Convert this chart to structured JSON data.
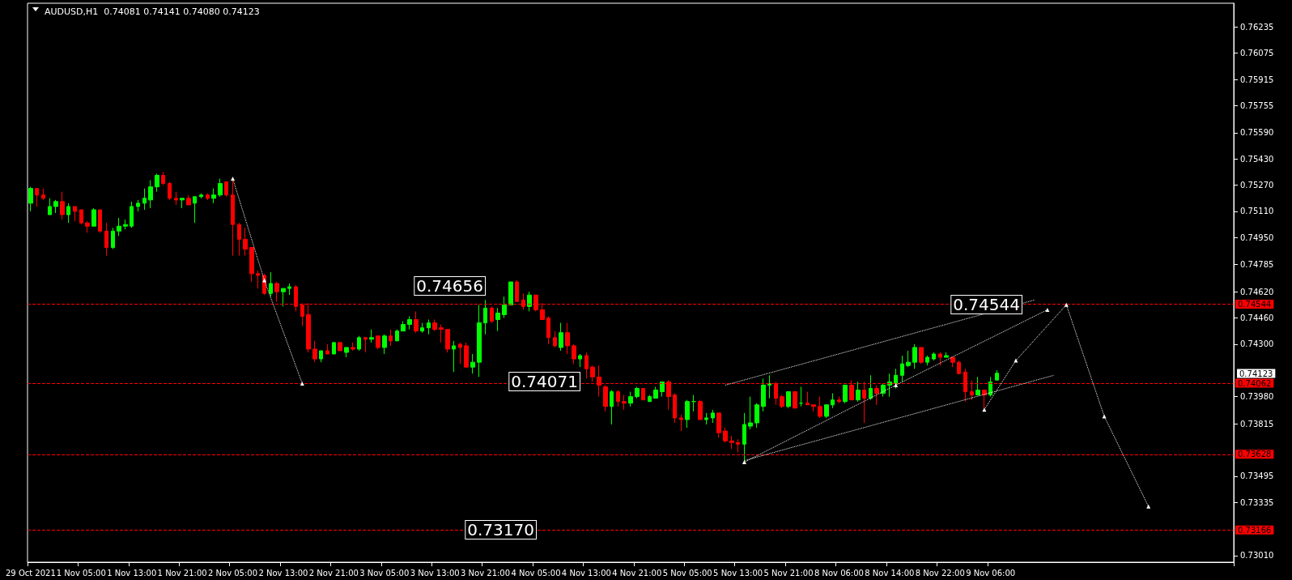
{
  "chart_data": {
    "type": "candlestick",
    "title": "AUDUSD,H1  0.74081 0.74141 0.74080 0.74123",
    "categories": [
      "29 Oct 2021",
      null,
      null,
      null,
      null,
      null,
      null,
      null,
      "1 Nov 05:00",
      null,
      null,
      null,
      null,
      null,
      null,
      null,
      "1 Nov 13:00",
      null,
      null,
      null,
      null,
      null,
      null,
      null,
      "1 Nov 21:00",
      null,
      null,
      null,
      null,
      null,
      null,
      null,
      "2 Nov 05:00",
      null,
      null,
      null,
      null,
      null,
      null,
      null,
      "2 Nov 13:00",
      null,
      null,
      null,
      null,
      null,
      null,
      null,
      "2 Nov 21:00",
      null,
      null,
      null,
      null,
      null,
      null,
      null,
      "3 Nov 05:00",
      null,
      null,
      null,
      null,
      null,
      null,
      null,
      "3 Nov 13:00",
      null,
      null,
      null,
      null,
      null,
      null,
      null,
      "3 Nov 21:00",
      null,
      null,
      null,
      null,
      null,
      null,
      null,
      "4 Nov 05:00",
      null,
      null,
      null,
      null,
      null,
      null,
      null,
      "4 Nov 13:00",
      null,
      null,
      null,
      null,
      null,
      null,
      null,
      "4 Nov 21:00",
      null,
      null,
      null,
      null,
      null,
      null,
      null,
      "5 Nov 05:00",
      null,
      null,
      null,
      null,
      null,
      null,
      null,
      "5 Nov 13:00",
      null,
      null,
      null,
      null,
      null,
      null,
      null,
      "5 Nov 21:00",
      null,
      null,
      null,
      null,
      null,
      null,
      null,
      "8 Nov 06:00",
      null,
      null,
      null,
      null,
      null,
      null,
      null,
      "8 Nov 14:00",
      null,
      null,
      null,
      null,
      null,
      null,
      null,
      "8 Nov 22:00",
      null,
      null,
      null,
      null,
      null,
      null,
      null,
      "9 Nov 06:00",
      null,
      null,
      null,
      null,
      null,
      null,
      null,
      null,
      null,
      null,
      null,
      null,
      null,
      null,
      null,
      null,
      null,
      null,
      null,
      null,
      null,
      null,
      null,
      null,
      null,
      null,
      null,
      null,
      null,
      null,
      null,
      null,
      null,
      null,
      null,
      null,
      null,
      null
    ],
    "colors": [
      "#00ff00",
      "#ff0000",
      "#ff0000",
      "#00ff00",
      "#00ff00",
      "#ff0000",
      "#00ff00",
      "#ff0000",
      "#ff0000",
      "#ff0000",
      "#00ff00",
      "#ff0000",
      "#ff0000",
      "#00ff00",
      "#00ff00",
      "#00ff00",
      "#00ff00",
      "#00ff00",
      "#00ff00",
      "#00ff00",
      "#00ff00",
      "#ff0000",
      "#ff0000",
      "#ff0000",
      "#00ff00",
      "#ff0000",
      "#00ff00",
      "#00ff00",
      "#ff0000",
      "#00ff00",
      "#00ff00",
      "#ff0000",
      "#ff0000",
      "#ff0000",
      "#ff0000",
      "#ff0000",
      "#ff0000",
      "#ff0000",
      "#00ff00",
      "#ff0000",
      "#00ff00",
      "#00ff00",
      "#ff0000",
      "#ff0000",
      "#ff0000",
      "#ff0000",
      "#00ff00",
      "#ff0000",
      "#00ff00",
      "#ff0000",
      "#00ff00",
      "#ff0000",
      "#00ff00",
      "#ff0000",
      "#00ff00",
      "#ff0000",
      "#00ff00",
      "#ff0000",
      "#00ff00",
      "#00ff00",
      "#00ff00",
      "#ff0000",
      "#00ff00",
      "#00ff00",
      "#ff0000",
      "#ff0000",
      "#ff0000",
      "#00ff00",
      "#ff0000",
      "#ff0000",
      "#00ff00",
      "#00ff00",
      "#00ff00",
      "#ff0000",
      "#00ff00",
      "#00ff00",
      "#00ff00",
      "#ff0000",
      "#ff0000",
      "#00ff00",
      "#ff0000",
      "#ff0000",
      "#ff0000",
      "#ff0000",
      "#00ff00",
      "#ff0000",
      "#ff0000",
      "#00ff00",
      "#ff0000",
      "#ff0000",
      "#ff0000",
      "#ff0000",
      "#00ff00",
      "#ff0000",
      "#ff0000",
      "#00ff00",
      "#00ff00",
      "#ff0000",
      "#00ff00",
      "#00ff00",
      "#00ff00",
      "#ff0000",
      "#ff0000",
      "#ff0000",
      "#00ff00",
      "#00ff00",
      "#ff0000",
      "#00ff00",
      "#00ff00",
      "#ff0000",
      "#ff0000",
      "#ff0000",
      "#ff0000",
      "#00ff00",
      "#00ff00",
      "#00ff00",
      "#00ff00",
      "#00ff00",
      "#ff0000",
      "#ff0000",
      "#00ff00",
      "#ff0000",
      "#00ff00",
      "#ff0000",
      "#ff0000",
      "#ff0000",
      "#00ff00",
      "#00ff00",
      "#ff0000",
      "#00ff00",
      "#ff0000",
      "#00ff00",
      "#ff0000",
      "#00ff00",
      "#ff0000",
      "#00ff00",
      "#00ff00",
      "#00ff00",
      "#00ff00",
      "#00ff00",
      "#00ff00",
      "#ff0000",
      "#00ff00",
      "#00ff00",
      "#ff0000",
      "#00ff00",
      "#ff0000",
      "#ff0000",
      "#ff0000",
      "#ff0000",
      "#00ff00",
      "#ff0000",
      "#00ff00",
      "#00ff00",
      null,
      null,
      null,
      null,
      null,
      null,
      null,
      null,
      null,
      null,
      null,
      null,
      null,
      null,
      null,
      null,
      null,
      null,
      null,
      null,
      null,
      null,
      null,
      null,
      null,
      null,
      null,
      null,
      null,
      null,
      null,
      null,
      null,
      null,
      null,
      null,
      null
    ],
    "ohlc": [
      [
        0.7516,
        0.7526,
        0.7511,
        0.7525
      ],
      [
        0.7525,
        0.7525,
        0.7514,
        0.7521
      ],
      [
        0.7521,
        0.7525,
        0.7518,
        0.7519
      ],
      [
        0.7509,
        0.7519,
        0.7509,
        0.7514
      ],
      [
        0.7514,
        0.7518,
        0.751,
        0.7517
      ],
      [
        0.7517,
        0.7523,
        0.7506,
        0.7509
      ],
      [
        0.7509,
        0.7516,
        0.7504,
        0.7514
      ],
      [
        0.7514,
        0.7514,
        0.7505,
        0.7511
      ],
      [
        0.7512,
        0.7512,
        0.7503,
        0.7504
      ],
      [
        0.7504,
        0.7505,
        0.7498,
        0.7502
      ],
      [
        0.7502,
        0.7513,
        0.7502,
        0.7512
      ],
      [
        0.7512,
        0.7512,
        0.7498,
        0.7499
      ],
      [
        0.7499,
        0.7504,
        0.7484,
        0.7489
      ],
      [
        0.7489,
        0.7501,
        0.7488,
        0.7499
      ],
      [
        0.7499,
        0.7507,
        0.7496,
        0.7502
      ],
      [
        0.7502,
        0.7506,
        0.75,
        0.7503
      ],
      [
        0.7502,
        0.7517,
        0.7501,
        0.7514
      ],
      [
        0.7514,
        0.7518,
        0.7511,
        0.7516
      ],
      [
        0.7516,
        0.7525,
        0.7512,
        0.7519
      ],
      [
        0.7518,
        0.753,
        0.7513,
        0.7526
      ],
      [
        0.7526,
        0.7534,
        0.7523,
        0.7533
      ],
      [
        0.7533,
        0.7535,
        0.7527,
        0.7528
      ],
      [
        0.7528,
        0.7529,
        0.7518,
        0.7519
      ],
      [
        0.7519,
        0.7523,
        0.7515,
        0.7518
      ],
      [
        0.7518,
        0.7519,
        0.7513,
        0.7519
      ],
      [
        0.7519,
        0.7521,
        0.7515,
        0.7515
      ],
      [
        0.7516,
        0.752,
        0.7504,
        0.752
      ],
      [
        0.752,
        0.7522,
        0.7519,
        0.7521
      ],
      [
        0.7521,
        0.7522,
        0.7518,
        0.7519
      ],
      [
        0.7519,
        0.7525,
        0.7516,
        0.7521
      ],
      [
        0.7521,
        0.7531,
        0.752,
        0.7528
      ],
      [
        0.7529,
        0.7529,
        0.752,
        0.7521
      ],
      [
        0.7521,
        0.753,
        0.7484,
        0.7503
      ],
      [
        0.7503,
        0.7504,
        0.7484,
        0.7494
      ],
      [
        0.7494,
        0.7501,
        0.7484,
        0.7488
      ],
      [
        0.7489,
        0.7489,
        0.7468,
        0.7473
      ],
      [
        0.7473,
        0.7475,
        0.7464,
        0.7472
      ],
      [
        0.7472,
        0.7473,
        0.746,
        0.7461
      ],
      [
        0.7461,
        0.7474,
        0.7459,
        0.7467
      ],
      [
        0.7467,
        0.7468,
        0.7456,
        0.7462
      ],
      [
        0.7462,
        0.7464,
        0.7453,
        0.7464
      ],
      [
        0.7464,
        0.7467,
        0.746,
        0.7465
      ],
      [
        0.7465,
        0.7466,
        0.745,
        0.7453
      ],
      [
        0.7454,
        0.7455,
        0.7441,
        0.7447
      ],
      [
        0.7448,
        0.7455,
        0.7425,
        0.7427
      ],
      [
        0.7427,
        0.7432,
        0.7419,
        0.7421
      ],
      [
        0.7421,
        0.7426,
        0.7419,
        0.7426
      ],
      [
        0.7426,
        0.743,
        0.7424,
        0.7424
      ],
      [
        0.7424,
        0.7431,
        0.7424,
        0.7431
      ],
      [
        0.7431,
        0.7431,
        0.7426,
        0.7426
      ],
      [
        0.7425,
        0.7428,
        0.7422,
        0.7428
      ],
      [
        0.7428,
        0.7431,
        0.7426,
        0.7427
      ],
      [
        0.7427,
        0.7435,
        0.7426,
        0.7434
      ],
      [
        0.7434,
        0.7434,
        0.7425,
        0.7433
      ],
      [
        0.7433,
        0.7439,
        0.7431,
        0.7434
      ],
      [
        0.7435,
        0.7435,
        0.7427,
        0.7428
      ],
      [
        0.7428,
        0.7436,
        0.7424,
        0.7435
      ],
      [
        0.7435,
        0.7439,
        0.7429,
        0.7432
      ],
      [
        0.7432,
        0.7439,
        0.7432,
        0.7438
      ],
      [
        0.7438,
        0.7444,
        0.7438,
        0.7442
      ],
      [
        0.7442,
        0.7447,
        0.7439,
        0.7445
      ],
      [
        0.7445,
        0.745,
        0.7437,
        0.7438
      ],
      [
        0.7438,
        0.7443,
        0.7437,
        0.744
      ],
      [
        0.744,
        0.7445,
        0.7436,
        0.7443
      ],
      [
        0.7443,
        0.7445,
        0.7438,
        0.7439
      ],
      [
        0.744,
        0.7442,
        0.7431,
        0.7439
      ],
      [
        0.7439,
        0.7439,
        0.7425,
        0.7427
      ],
      [
        0.7427,
        0.7432,
        0.7413,
        0.7429
      ],
      [
        0.743,
        0.7431,
        0.7418,
        0.7428
      ],
      [
        0.7429,
        0.7431,
        0.7416,
        0.7416
      ],
      [
        0.7416,
        0.7424,
        0.7412,
        0.7419
      ],
      [
        0.7419,
        0.7454,
        0.741,
        0.7443
      ],
      [
        0.7443,
        0.7457,
        0.7436,
        0.7452
      ],
      [
        0.7452,
        0.7453,
        0.7443,
        0.7444
      ],
      [
        0.7445,
        0.7452,
        0.7438,
        0.7449
      ],
      [
        0.7448,
        0.7459,
        0.7446,
        0.7454
      ],
      [
        0.7454,
        0.7468,
        0.7454,
        0.7468
      ],
      [
        0.7468,
        0.7469,
        0.7456,
        0.7456
      ],
      [
        0.7457,
        0.7461,
        0.7451,
        0.7453
      ],
      [
        0.7453,
        0.7462,
        0.745,
        0.746
      ],
      [
        0.746,
        0.746,
        0.745,
        0.7451
      ],
      [
        0.7451,
        0.7455,
        0.7445,
        0.7445
      ],
      [
        0.7446,
        0.7447,
        0.743,
        0.7434
      ],
      [
        0.7434,
        0.7438,
        0.7428,
        0.7429
      ],
      [
        0.7428,
        0.7443,
        0.7426,
        0.7437
      ],
      [
        0.7437,
        0.7443,
        0.7424,
        0.7429
      ],
      [
        0.7429,
        0.743,
        0.7418,
        0.7421
      ],
      [
        0.7421,
        0.7424,
        0.7416,
        0.7423
      ],
      [
        0.7423,
        0.7425,
        0.7409,
        0.7415
      ],
      [
        0.7416,
        0.7417,
        0.7407,
        0.741
      ],
      [
        0.741,
        0.7417,
        0.7398,
        0.7405
      ],
      [
        0.7404,
        0.7405,
        0.7389,
        0.7392
      ],
      [
        0.7392,
        0.7402,
        0.7381,
        0.7401
      ],
      [
        0.7401,
        0.7402,
        0.7392,
        0.7395
      ],
      [
        0.7395,
        0.7399,
        0.739,
        0.7394
      ],
      [
        0.7394,
        0.7401,
        0.7392,
        0.7398
      ],
      [
        0.7398,
        0.7404,
        0.7397,
        0.7403
      ],
      [
        0.7403,
        0.7403,
        0.7396,
        0.7396
      ],
      [
        0.7395,
        0.7399,
        0.7395,
        0.7398
      ],
      [
        0.7397,
        0.7404,
        0.7397,
        0.7402
      ],
      [
        0.7401,
        0.7407,
        0.7398,
        0.7407
      ],
      [
        0.7407,
        0.7408,
        0.739,
        0.7398
      ],
      [
        0.7399,
        0.74,
        0.7382,
        0.7385
      ],
      [
        0.7385,
        0.7387,
        0.7377,
        0.7384
      ],
      [
        0.7384,
        0.7396,
        0.7379,
        0.7395
      ],
      [
        0.7395,
        0.7399,
        0.7389,
        0.7395
      ],
      [
        0.7395,
        0.7396,
        0.7384,
        0.7384
      ],
      [
        0.7384,
        0.7388,
        0.7381,
        0.7385
      ],
      [
        0.7385,
        0.739,
        0.7382,
        0.7388
      ],
      [
        0.7388,
        0.7388,
        0.7373,
        0.7376
      ],
      [
        0.7377,
        0.7379,
        0.737,
        0.7371
      ],
      [
        0.7371,
        0.7374,
        0.7366,
        0.737
      ],
      [
        0.737,
        0.7372,
        0.7364,
        0.7369
      ],
      [
        0.7369,
        0.7388,
        0.7358,
        0.7381
      ],
      [
        0.738,
        0.7398,
        0.7378,
        0.7382
      ],
      [
        0.7382,
        0.7394,
        0.7379,
        0.7393
      ],
      [
        0.7392,
        0.7409,
        0.7389,
        0.7405
      ],
      [
        0.7405,
        0.7411,
        0.7397,
        0.7406
      ],
      [
        0.7406,
        0.7407,
        0.7393,
        0.7397
      ],
      [
        0.7398,
        0.7399,
        0.7391,
        0.7392
      ],
      [
        0.7392,
        0.7401,
        0.7391,
        0.7401
      ],
      [
        0.7401,
        0.7401,
        0.7391,
        0.7391
      ],
      [
        0.7394,
        0.7404,
        0.7392,
        0.7394
      ],
      [
        0.7394,
        0.7401,
        0.7393,
        0.7393
      ],
      [
        0.7393,
        0.7393,
        0.7389,
        0.7392
      ],
      [
        0.7392,
        0.7398,
        0.7385,
        0.7386
      ],
      [
        0.7386,
        0.7393,
        0.7385,
        0.7393
      ],
      [
        0.7393,
        0.74,
        0.7391,
        0.7396
      ],
      [
        0.7396,
        0.7398,
        0.7394,
        0.7395
      ],
      [
        0.7395,
        0.7405,
        0.7394,
        0.7405
      ],
      [
        0.7405,
        0.7408,
        0.7396,
        0.7396
      ],
      [
        0.7396,
        0.7407,
        0.7395,
        0.7402
      ],
      [
        0.7402,
        0.7407,
        0.7382,
        0.7397
      ],
      [
        0.7397,
        0.7411,
        0.7396,
        0.7403
      ],
      [
        0.7403,
        0.7405,
        0.7393,
        0.74
      ],
      [
        0.74,
        0.7406,
        0.7398,
        0.7405
      ],
      [
        0.7405,
        0.7412,
        0.7398,
        0.7407
      ],
      [
        0.7406,
        0.7415,
        0.7403,
        0.7411
      ],
      [
        0.7411,
        0.7423,
        0.7407,
        0.7418
      ],
      [
        0.7417,
        0.7426,
        0.7416,
        0.7419
      ],
      [
        0.7419,
        0.743,
        0.7415,
        0.7428
      ],
      [
        0.7428,
        0.7428,
        0.7418,
        0.7419
      ],
      [
        0.7419,
        0.7423,
        0.7417,
        0.7422
      ],
      [
        0.7421,
        0.7425,
        0.742,
        0.7424
      ],
      [
        0.7424,
        0.7425,
        0.7417,
        0.7422
      ],
      [
        0.7422,
        0.7425,
        0.7422,
        0.7423
      ],
      [
        0.7422,
        0.7422,
        0.7416,
        0.7419
      ],
      [
        0.7419,
        0.742,
        0.7412,
        0.7412
      ],
      [
        0.7413,
        0.7415,
        0.7395,
        0.7401
      ],
      [
        0.7401,
        0.7408,
        0.7396,
        0.7399
      ],
      [
        0.7399,
        0.741,
        0.7399,
        0.7402
      ],
      [
        0.7402,
        0.7402,
        0.739,
        0.7399
      ],
      [
        0.7399,
        0.741,
        0.7398,
        0.7407
      ],
      [
        0.74081,
        0.74141,
        0.7408,
        0.74123
      ],
      null,
      null,
      null,
      null,
      null,
      null,
      null,
      null,
      null,
      null,
      null,
      null,
      null,
      null,
      null,
      null,
      null,
      null,
      null,
      null,
      null,
      null,
      null,
      null,
      null,
      null,
      null,
      null,
      null,
      null,
      null,
      null,
      null,
      null,
      null,
      null,
      null
    ],
    "series": [
      {
        "type": "line",
        "color": "#ffffff",
        "line_style": "dotted",
        "marker": "triangle",
        "values": [
          null,
          null,
          null,
          null,
          null,
          null,
          null,
          null,
          null,
          null,
          null,
          null,
          null,
          null,
          null,
          null,
          null,
          null,
          null,
          null,
          null,
          null,
          null,
          null,
          null,
          null,
          null,
          null,
          null,
          null,
          null,
          null,
          0.7531,
          null,
          null,
          null,
          null,
          0.7469,
          null,
          null,
          null,
          null,
          null,
          0.7406,
          null,
          null,
          null,
          null,
          null,
          null,
          null,
          null,
          null,
          null,
          null,
          null,
          null,
          null,
          null,
          null,
          null,
          null,
          null,
          null,
          null,
          null,
          null,
          null,
          null,
          null,
          null,
          null,
          null,
          null,
          null,
          null,
          null,
          null,
          null,
          null,
          null,
          null,
          null,
          null,
          null,
          null,
          null,
          null,
          null,
          null,
          null,
          null,
          null,
          null,
          null,
          null,
          null,
          null,
          null,
          null,
          null,
          null,
          null,
          null,
          null,
          null,
          null,
          null,
          null,
          null,
          null,
          null,
          null,
          null,
          null,
          null,
          null,
          null,
          null,
          null,
          null,
          null,
          null,
          null,
          null,
          null,
          null,
          null,
          null,
          null,
          null,
          null,
          null,
          null,
          null,
          null,
          null,
          null,
          null,
          null,
          null,
          null,
          null,
          null,
          null,
          null,
          null,
          null,
          null,
          null,
          null,
          null,
          null,
          null,
          null,
          null,
          null,
          null,
          null,
          null,
          null,
          null,
          null,
          null,
          null,
          null,
          null,
          null,
          null,
          null,
          null,
          null,
          null,
          null,
          null,
          null,
          null,
          null,
          null,
          null,
          null,
          null,
          null,
          null,
          null,
          null,
          null,
          null,
          null,
          null,
          null
        ]
      },
      {
        "type": "line",
        "color": "#ffffff",
        "line_style": "dotted",
        "marker": "none",
        "values": [
          null,
          null,
          null,
          null,
          null,
          null,
          null,
          null,
          null,
          null,
          null,
          null,
          null,
          null,
          null,
          null,
          null,
          null,
          null,
          null,
          null,
          null,
          null,
          null,
          null,
          null,
          null,
          null,
          null,
          null,
          null,
          null,
          null,
          null,
          null,
          null,
          null,
          null,
          null,
          null,
          null,
          null,
          null,
          null,
          null,
          null,
          null,
          null,
          null,
          null,
          null,
          null,
          null,
          null,
          null,
          null,
          null,
          null,
          null,
          null,
          null,
          null,
          null,
          null,
          null,
          null,
          null,
          null,
          null,
          null,
          null,
          null,
          null,
          null,
          null,
          null,
          null,
          null,
          null,
          null,
          null,
          null,
          null,
          null,
          null,
          null,
          null,
          null,
          null,
          null,
          null,
          null,
          null,
          null,
          null,
          null,
          null,
          null,
          null,
          null,
          null,
          null,
          null,
          null,
          null,
          null,
          null,
          null,
          null,
          null,
          0.7405,
          null,
          null,
          null,
          null,
          null,
          null,
          null,
          null,
          null,
          null,
          null,
          null,
          null,
          null,
          null,
          null,
          null,
          null,
          null,
          null,
          null,
          null,
          null,
          null,
          null,
          null,
          null,
          null,
          null,
          null,
          null,
          null,
          null,
          null,
          null,
          null,
          null,
          null,
          null,
          null,
          null,
          null,
          null,
          null,
          null,
          null,
          null,
          null,
          0.7457,
          null,
          null,
          null,
          null,
          null,
          null,
          null,
          null,
          null,
          null,
          null,
          null,
          null,
          null,
          null,
          null,
          null,
          null,
          null,
          null,
          null,
          null,
          null,
          null,
          null,
          null,
          null,
          null,
          null,
          null,
          null
        ]
      },
      {
        "type": "line",
        "color": "#ffffff",
        "line_style": "dotted",
        "marker": "none",
        "values": [
          null,
          null,
          null,
          null,
          null,
          null,
          null,
          null,
          null,
          null,
          null,
          null,
          null,
          null,
          null,
          null,
          null,
          null,
          null,
          null,
          null,
          null,
          null,
          null,
          null,
          null,
          null,
          null,
          null,
          null,
          null,
          null,
          null,
          null,
          null,
          null,
          null,
          null,
          null,
          null,
          null,
          null,
          null,
          null,
          null,
          null,
          null,
          null,
          null,
          null,
          null,
          null,
          null,
          null,
          null,
          null,
          null,
          null,
          null,
          null,
          null,
          null,
          null,
          null,
          null,
          null,
          null,
          null,
          null,
          null,
          null,
          null,
          null,
          null,
          null,
          null,
          null,
          null,
          null,
          null,
          null,
          null,
          null,
          null,
          null,
          null,
          null,
          null,
          null,
          null,
          null,
          null,
          null,
          null,
          null,
          null,
          null,
          null,
          null,
          null,
          null,
          null,
          null,
          null,
          null,
          null,
          null,
          null,
          null,
          null,
          null,
          null,
          null,
          0.7359,
          null,
          null,
          null,
          null,
          null,
          null,
          null,
          null,
          null,
          null,
          null,
          null,
          null,
          null,
          null,
          null,
          null,
          null,
          null,
          null,
          null,
          null,
          null,
          null,
          null,
          null,
          null,
          null,
          null,
          null,
          null,
          null,
          null,
          null,
          null,
          null,
          null,
          null,
          null,
          null,
          null,
          null,
          null,
          null,
          null,
          null,
          null,
          null,
          0.7411,
          null,
          null,
          null,
          null,
          null,
          null,
          null,
          null,
          null,
          null,
          null,
          null,
          null,
          null,
          null,
          null,
          null,
          null,
          null,
          null,
          null,
          null,
          null,
          null,
          null,
          null,
          null,
          null
        ]
      },
      {
        "type": "line",
        "color": "#ffffff",
        "line_style": "dotted",
        "marker": "triangle",
        "values": [
          null,
          null,
          null,
          null,
          null,
          null,
          null,
          null,
          null,
          null,
          null,
          null,
          null,
          null,
          null,
          null,
          null,
          null,
          null,
          null,
          null,
          null,
          null,
          null,
          null,
          null,
          null,
          null,
          null,
          null,
          null,
          null,
          null,
          null,
          null,
          null,
          null,
          null,
          null,
          null,
          null,
          null,
          null,
          null,
          null,
          null,
          null,
          null,
          null,
          null,
          null,
          null,
          null,
          null,
          null,
          null,
          null,
          null,
          null,
          null,
          null,
          null,
          null,
          null,
          null,
          null,
          null,
          null,
          null,
          null,
          null,
          null,
          null,
          null,
          null,
          null,
          null,
          null,
          null,
          null,
          null,
          null,
          null,
          null,
          null,
          null,
          null,
          null,
          null,
          null,
          null,
          null,
          null,
          null,
          null,
          null,
          null,
          null,
          null,
          null,
          null,
          null,
          null,
          null,
          null,
          null,
          null,
          null,
          null,
          null,
          null,
          null,
          null,
          0.7358,
          null,
          null,
          null,
          null,
          null,
          null,
          null,
          null,
          null,
          null,
          null,
          null,
          null,
          null,
          null,
          null,
          null,
          null,
          null,
          null,
          null,
          null,
          null,
          0.7405,
          null,
          null,
          null,
          null,
          null,
          null,
          null,
          null,
          null,
          null,
          null,
          null,
          null,
          null,
          null,
          null,
          null,
          null,
          null,
          null,
          null,
          null,
          null,
          0.7451,
          null,
          null,
          null,
          null,
          null,
          null,
          null,
          null,
          null,
          null,
          null,
          null,
          null,
          null,
          null,
          null,
          null,
          null,
          null,
          null,
          null,
          null,
          null,
          null,
          null,
          null,
          null,
          null,
          null
        ]
      },
      {
        "type": "line",
        "color": "#ffffff",
        "line_style": "dotted",
        "marker": "triangle",
        "values": [
          null,
          null,
          null,
          null,
          null,
          null,
          null,
          null,
          null,
          null,
          null,
          null,
          null,
          null,
          null,
          null,
          null,
          null,
          null,
          null,
          null,
          null,
          null,
          null,
          null,
          null,
          null,
          null,
          null,
          null,
          null,
          null,
          null,
          null,
          null,
          null,
          null,
          null,
          null,
          null,
          null,
          null,
          null,
          null,
          null,
          null,
          null,
          null,
          null,
          null,
          null,
          null,
          null,
          null,
          null,
          null,
          null,
          null,
          null,
          null,
          null,
          null,
          null,
          null,
          null,
          null,
          null,
          null,
          null,
          null,
          null,
          null,
          null,
          null,
          null,
          null,
          null,
          null,
          null,
          null,
          null,
          null,
          null,
          null,
          null,
          null,
          null,
          null,
          null,
          null,
          null,
          null,
          null,
          null,
          null,
          null,
          null,
          null,
          null,
          null,
          null,
          null,
          null,
          null,
          null,
          null,
          null,
          null,
          null,
          null,
          null,
          null,
          null,
          null,
          null,
          null,
          null,
          null,
          null,
          null,
          null,
          null,
          null,
          null,
          null,
          null,
          null,
          null,
          null,
          null,
          null,
          null,
          null,
          null,
          null,
          null,
          null,
          null,
          null,
          null,
          null,
          null,
          null,
          null,
          null,
          null,
          null,
          null,
          null,
          null,
          null,
          0.739,
          null,
          null,
          null,
          null,
          0.742,
          null,
          null,
          null,
          null,
          null,
          null,
          null,
          0.7454,
          null,
          null,
          null,
          null,
          null,
          0.7386,
          null,
          null,
          null,
          null,
          null,
          null,
          0.7331,
          null,
          null,
          null,
          null,
          null,
          null,
          null,
          null,
          null,
          null,
          null,
          null,
          null
        ]
      }
    ],
    "ylim": [
      0.7297,
      0.7638
    ],
    "yticks": [
      0.76235,
      0.76075,
      0.75915,
      0.75755,
      {
        "value": 0.7559,
        "label": "0.75590"
      },
      {
        "value": 0.7543,
        "label": "0.75430"
      },
      {
        "value": 0.7527,
        "label": "0.75270"
      },
      {
        "value": 0.7511,
        "label": "0.75110"
      },
      {
        "value": 0.7495,
        "label": "0.74950"
      },
      0.74785,
      {
        "value": 0.7462,
        "label": "0.74620"
      },
      {
        "value": 0.7446,
        "label": "0.74460"
      },
      {
        "value": 0.743,
        "label": "0.74300"
      },
      {
        "value": 0.7398,
        "label": "0.73980"
      },
      0.73815,
      0.73495,
      0.73335,
      {
        "value": 0.7301,
        "label": "0.73010"
      }
    ],
    "ref_lines": [
      {
        "axis": "y",
        "value": 0.74544,
        "label": "0.74544",
        "color": "#ff0000",
        "line_style": "dashed"
      },
      {
        "axis": "y",
        "value": 0.74062,
        "label": "0.74062",
        "color": "#ff0000",
        "line_style": "dashed"
      },
      {
        "axis": "y",
        "value": 0.73628,
        "label": "0.73628",
        "color": "#ff0000",
        "line_style": "dashed"
      },
      {
        "axis": "y",
        "value": 0.73166,
        "label": "0.73166",
        "color": "#ff0000",
        "line_style": "dashed"
      }
    ],
    "annotations": [
      "0.74656",
      "0.74071",
      "0.74544",
      "0.73170",
      "0.74123"
    ]
  }
}
